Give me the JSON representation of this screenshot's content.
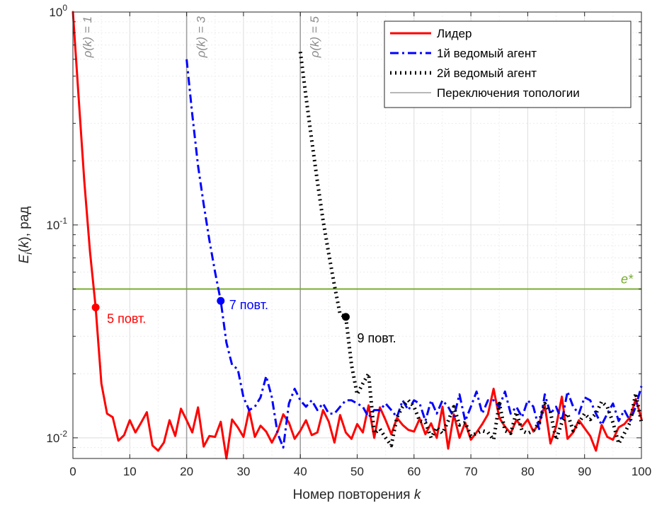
{
  "chart_data": {
    "type": "line",
    "xlabel": "Номер повторения k",
    "ylabel": "E_i(k), рад",
    "xlim": [
      0,
      100
    ],
    "ylim": [
      0.008,
      1.0
    ],
    "yscale": "log",
    "grid": true,
    "legend_position": "top-right",
    "x_ticks": [
      0,
      10,
      20,
      30,
      40,
      50,
      60,
      70,
      80,
      90,
      100
    ],
    "y_ticks": [
      {
        "value": 1.0,
        "base": "10",
        "exp": "0"
      },
      {
        "value": 0.1,
        "base": "10",
        "exp": "-1"
      },
      {
        "value": 0.01,
        "base": "10",
        "exp": "-2"
      }
    ],
    "series": [
      {
        "name": "Лидер",
        "color": "#ff0000",
        "style": "solid",
        "x": [
          0,
          1,
          2,
          3,
          4,
          5,
          6,
          7,
          8,
          9,
          10,
          11,
          12,
          13,
          14,
          15,
          16,
          17,
          18,
          19,
          20,
          21,
          22,
          23,
          24,
          25,
          26,
          27,
          28,
          29,
          30,
          31,
          32,
          33,
          34,
          35,
          36,
          37,
          38,
          39,
          40,
          41,
          42,
          43,
          44,
          45,
          46,
          47,
          48,
          49,
          50,
          51,
          52,
          53,
          54,
          55,
          56,
          57,
          58,
          59,
          60,
          61,
          62,
          63,
          64,
          65,
          66,
          67,
          68,
          69,
          70,
          71,
          72,
          73,
          74,
          75,
          76,
          77,
          78,
          79,
          80,
          81,
          82,
          83,
          84,
          85,
          86,
          87,
          88,
          89,
          90,
          91,
          92,
          93,
          94,
          95,
          96,
          97,
          98,
          99,
          100
        ],
        "y": [
          1.0,
          0.4,
          0.16,
          0.075,
          0.041,
          0.018,
          0.013,
          0.0125,
          0.0097,
          0.0103,
          0.0121,
          0.0106,
          0.0118,
          0.0132,
          0.0092,
          0.0087,
          0.0095,
          0.0121,
          0.0102,
          0.0137,
          0.0121,
          0.0106,
          0.0139,
          0.0091,
          0.0102,
          0.0101,
          0.0119,
          0.008,
          0.0122,
          0.0112,
          0.0101,
          0.0135,
          0.0101,
          0.0114,
          0.0107,
          0.0095,
          0.0107,
          0.0129,
          0.0118,
          0.0099,
          0.0108,
          0.0121,
          0.0103,
          0.0106,
          0.0135,
          0.0119,
          0.0095,
          0.0128,
          0.0106,
          0.0099,
          0.0116,
          0.0106,
          0.0142,
          0.01,
          0.0139,
          0.0121,
          0.0104,
          0.0124,
          0.0115,
          0.0109,
          0.0107,
          0.0123,
          0.0104,
          0.0117,
          0.01,
          0.014,
          0.0089,
          0.0129,
          0.01,
          0.0118,
          0.0098,
          0.0106,
          0.0116,
          0.0129,
          0.017,
          0.0124,
          0.0113,
          0.0105,
          0.0121,
          0.0113,
          0.0122,
          0.0107,
          0.0117,
          0.0142,
          0.0094,
          0.0113,
          0.0156,
          0.0099,
          0.0106,
          0.0121,
          0.0111,
          0.0102,
          0.0087,
          0.0115,
          0.0101,
          0.0098,
          0.0112,
          0.0116,
          0.0125,
          0.0152,
          0.0123
        ]
      },
      {
        "name": "1й ведомый агент",
        "color": "#0000ff",
        "style": "dashdot",
        "x": [
          20,
          21,
          22,
          23,
          24,
          25,
          26,
          27,
          28,
          29,
          30,
          31,
          32,
          33,
          34,
          35,
          36,
          37,
          38,
          39,
          40,
          41,
          42,
          43,
          44,
          45,
          46,
          47,
          48,
          49,
          50,
          51,
          52,
          53,
          54,
          55,
          56,
          57,
          58,
          59,
          60,
          61,
          62,
          63,
          64,
          65,
          66,
          67,
          68,
          69,
          70,
          71,
          72,
          73,
          74,
          75,
          76,
          77,
          78,
          79,
          80,
          81,
          82,
          83,
          84,
          85,
          86,
          87,
          88,
          89,
          90,
          91,
          92,
          93,
          94,
          95,
          96,
          97,
          98,
          99,
          100
        ],
        "y": [
          0.6,
          0.33,
          0.19,
          0.125,
          0.085,
          0.06,
          0.044,
          0.028,
          0.022,
          0.021,
          0.0155,
          0.0135,
          0.014,
          0.0155,
          0.0195,
          0.0155,
          0.0105,
          0.009,
          0.0145,
          0.017,
          0.015,
          0.014,
          0.015,
          0.0135,
          0.0145,
          0.013,
          0.013,
          0.014,
          0.015,
          0.015,
          0.0145,
          0.014,
          0.0125,
          0.0135,
          0.0135,
          0.0145,
          0.0135,
          0.0125,
          0.015,
          0.0135,
          0.015,
          0.0145,
          0.012,
          0.015,
          0.013,
          0.015,
          0.014,
          0.0125,
          0.016,
          0.012,
          0.014,
          0.0165,
          0.013,
          0.015,
          0.015,
          0.014,
          0.0165,
          0.013,
          0.014,
          0.0125,
          0.015,
          0.014,
          0.011,
          0.016,
          0.013,
          0.014,
          0.012,
          0.0165,
          0.014,
          0.013,
          0.0155,
          0.015,
          0.013,
          0.0115,
          0.013,
          0.0145,
          0.012,
          0.0135,
          0.012,
          0.014,
          0.0175
        ]
      },
      {
        "name": "2й ведомый агент",
        "color": "#000000",
        "style": "dotted",
        "x": [
          40,
          41,
          42,
          43,
          44,
          45,
          46,
          47,
          48,
          49,
          50,
          51,
          52,
          53,
          54,
          55,
          56,
          57,
          58,
          59,
          60,
          61,
          62,
          63,
          64,
          65,
          66,
          67,
          68,
          69,
          70,
          71,
          72,
          73,
          74,
          75,
          76,
          77,
          78,
          79,
          80,
          81,
          82,
          83,
          84,
          85,
          86,
          87,
          88,
          89,
          90,
          91,
          92,
          93,
          94,
          95,
          96,
          97,
          98,
          99,
          100
        ],
        "y": [
          0.65,
          0.4,
          0.25,
          0.16,
          0.105,
          0.073,
          0.052,
          0.038,
          0.037,
          0.022,
          0.016,
          0.018,
          0.02,
          0.0105,
          0.011,
          0.01,
          0.0092,
          0.0125,
          0.014,
          0.015,
          0.014,
          0.012,
          0.0118,
          0.01,
          0.0112,
          0.0105,
          0.012,
          0.014,
          0.0115,
          0.0118,
          0.0102,
          0.0105,
          0.0108,
          0.0106,
          0.0098,
          0.0145,
          0.0108,
          0.0105,
          0.0132,
          0.0108,
          0.0105,
          0.0108,
          0.0118,
          0.0145,
          0.0132,
          0.0098,
          0.0118,
          0.013,
          0.0108,
          0.0118,
          0.013,
          0.0122,
          0.013,
          0.0148,
          0.014,
          0.0118,
          0.0094,
          0.0105,
          0.0118,
          0.0162,
          0.0118
        ]
      }
    ],
    "legend": [
      {
        "label": "Лидер",
        "color": "#ff0000",
        "style": "solid"
      },
      {
        "label": "1й ведомый агент",
        "color": "#0000ff",
        "style": "dashdot"
      },
      {
        "label": "2й ведомый агент",
        "color": "#000000",
        "style": "dotted"
      },
      {
        "label": "Переключения топологии",
        "color": "#a0a0a0",
        "style": "solid-thin"
      }
    ],
    "threshold": {
      "label": "e*",
      "value": 0.05,
      "color": "#77ac30"
    },
    "topology_switches": [
      {
        "x": 0,
        "label": "ρ(k) = 1"
      },
      {
        "x": 20,
        "label": "ρ(k) = 3"
      },
      {
        "x": 40,
        "label": "ρ(k) = 5"
      }
    ],
    "markers": [
      {
        "series": "Лидер",
        "x": 4,
        "y": 0.041,
        "label": "5 повт.",
        "color": "#ff0000"
      },
      {
        "series": "1й ведомый агент",
        "x": 26,
        "y": 0.044,
        "label": "7 повт.",
        "color": "#0000ff"
      },
      {
        "series": "2й ведомый агент",
        "x": 48,
        "y": 0.037,
        "label": "9 повт.",
        "color": "#000000"
      }
    ]
  }
}
